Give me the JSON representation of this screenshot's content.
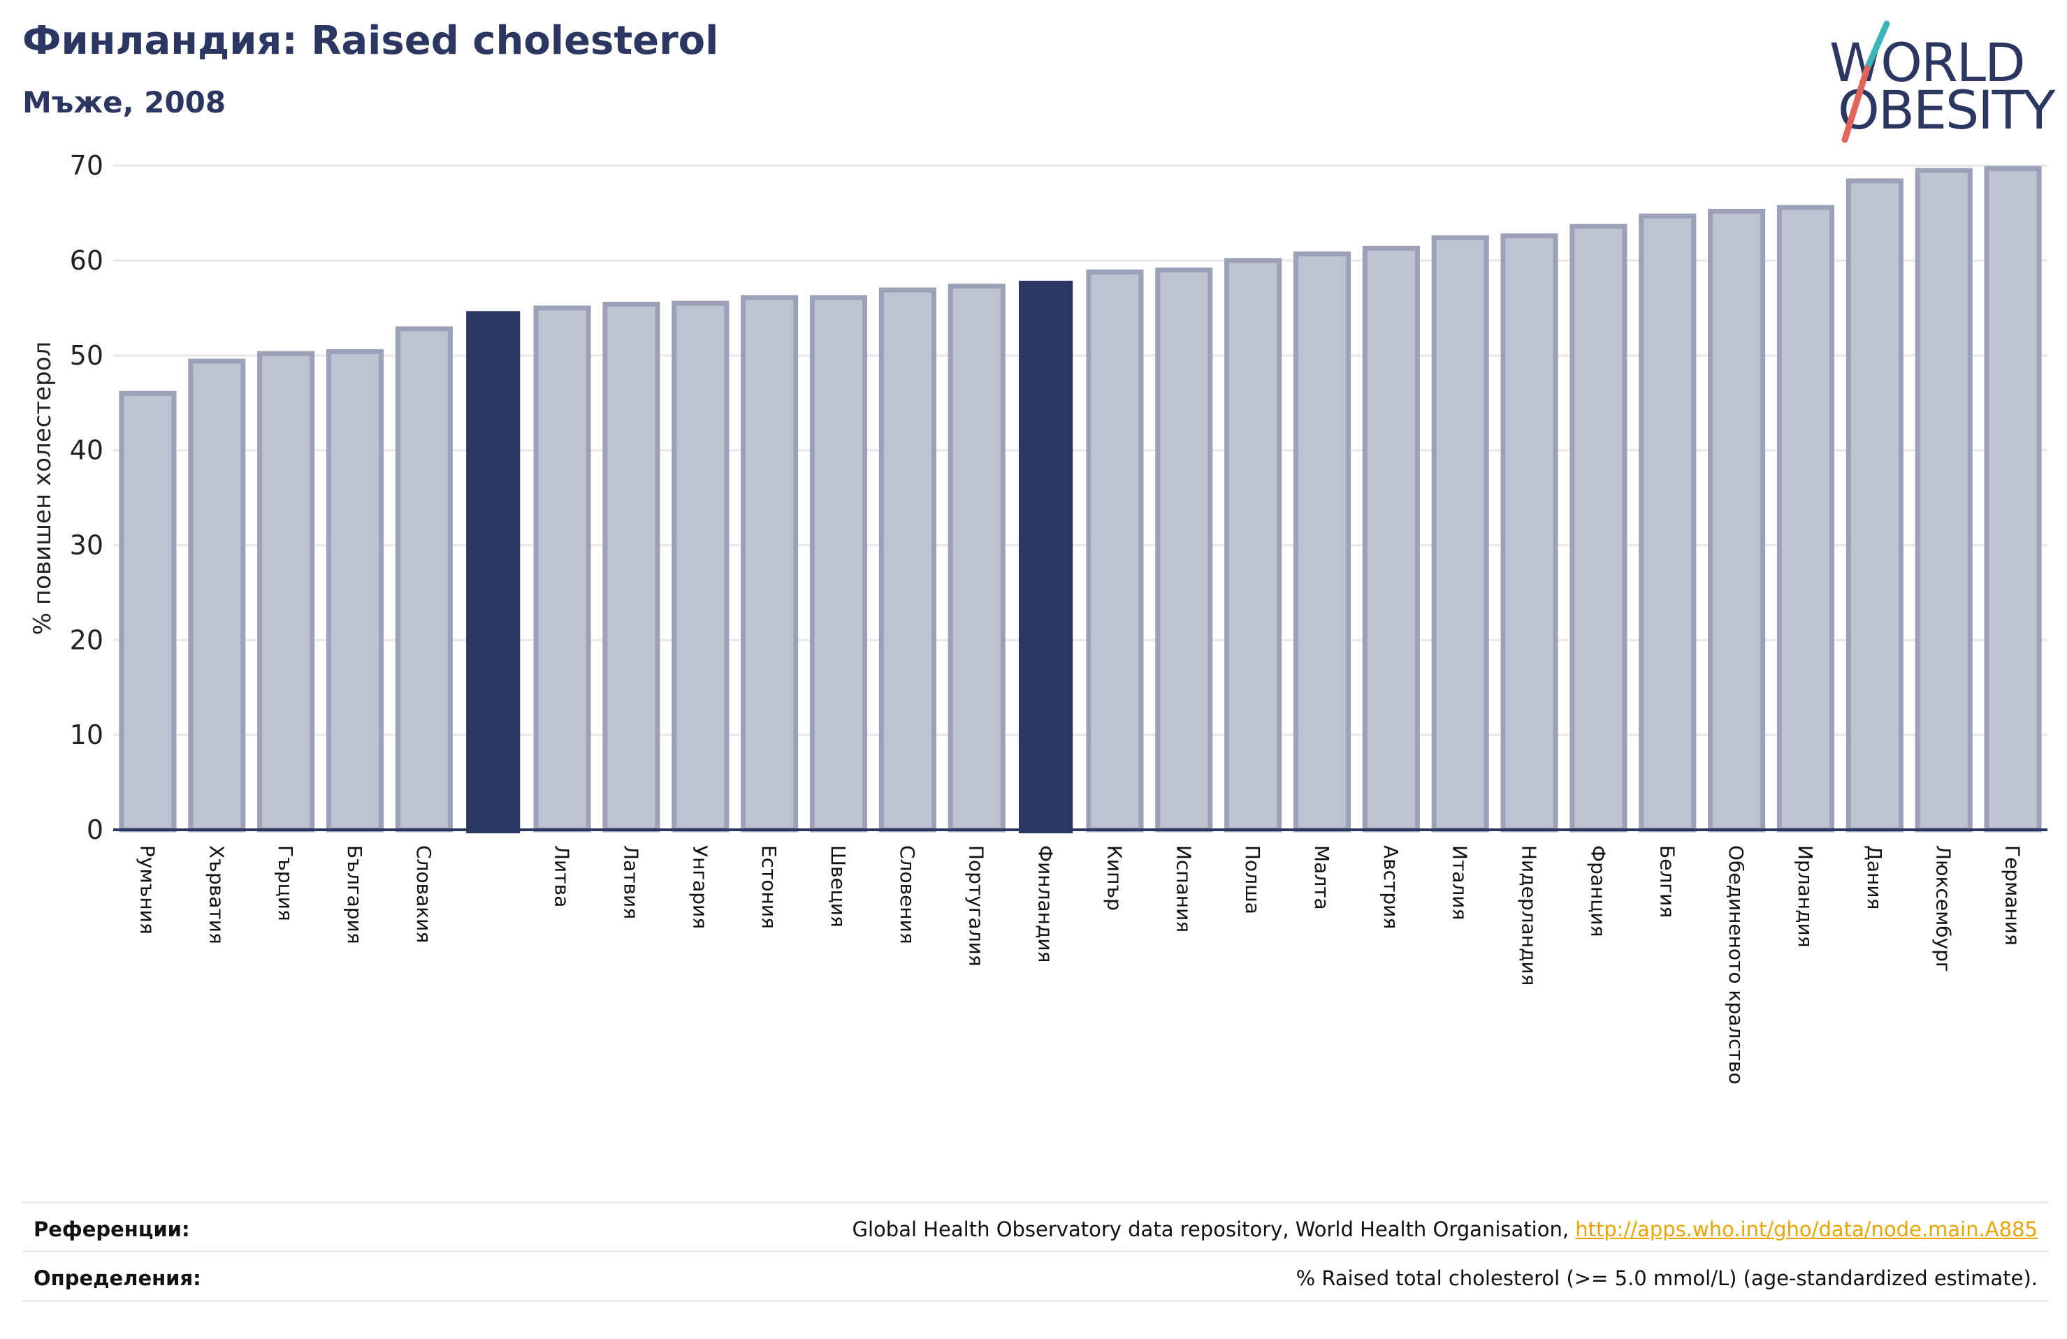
{
  "header": {
    "title": "Финландия: Raised cholesterol",
    "subtitle": "Мъже, 2008"
  },
  "logo": {
    "line1": "WORLD",
    "line2": "OBESITY",
    "colors": {
      "text": "#2b3760",
      "slash_top": "#3db5b8",
      "slash_bottom": "#e2645a"
    }
  },
  "chart_data": {
    "type": "bar",
    "ylabel": "% повишен холестерол",
    "ylim": [
      0,
      72
    ],
    "yticks": [
      0,
      10,
      20,
      30,
      40,
      50,
      60,
      70
    ],
    "grid": true,
    "categories": [
      "Румъния",
      "Хърватия",
      "Гърция",
      "България",
      "Словакия",
      "",
      "Литва",
      "Латвия",
      "Унгария",
      "Естония",
      "Швеция",
      "Словения",
      "Португалия",
      "Финландия",
      "Кипър",
      "Испания",
      "Полша",
      "Малта",
      "Австрия",
      "Италия",
      "Нидерландия",
      "Франция",
      "Белгия",
      "Обединеното кралство",
      "Ирландия",
      "Дания",
      "Люксембург",
      "Германия"
    ],
    "values": [
      46.0,
      49.4,
      50.2,
      50.4,
      52.8,
      54.6,
      55.0,
      55.4,
      55.5,
      56.1,
      56.1,
      56.9,
      57.3,
      57.8,
      58.8,
      59.0,
      60.0,
      60.7,
      61.3,
      62.4,
      62.6,
      63.6,
      64.7,
      65.2,
      65.6,
      68.4,
      69.5,
      69.7
    ],
    "highlighted": [
      5,
      13
    ],
    "colors": {
      "bar": "#bfc2d0",
      "bar_edge": "#9da1b8",
      "highlight": "#2b3760",
      "axis": "#2b3760",
      "grid": "#e8e8e8"
    }
  },
  "footer": {
    "references_label": "Референции:",
    "references_text": "Global Health Observatory data repository, World Health Organisation, ",
    "references_link": "http://apps.who.int/gho/data/node.main.A885",
    "definitions_label": "Определения:",
    "definitions_text": "% Raised total cholesterol (>= 5.0 mmol/L) (age-standardized estimate)."
  }
}
